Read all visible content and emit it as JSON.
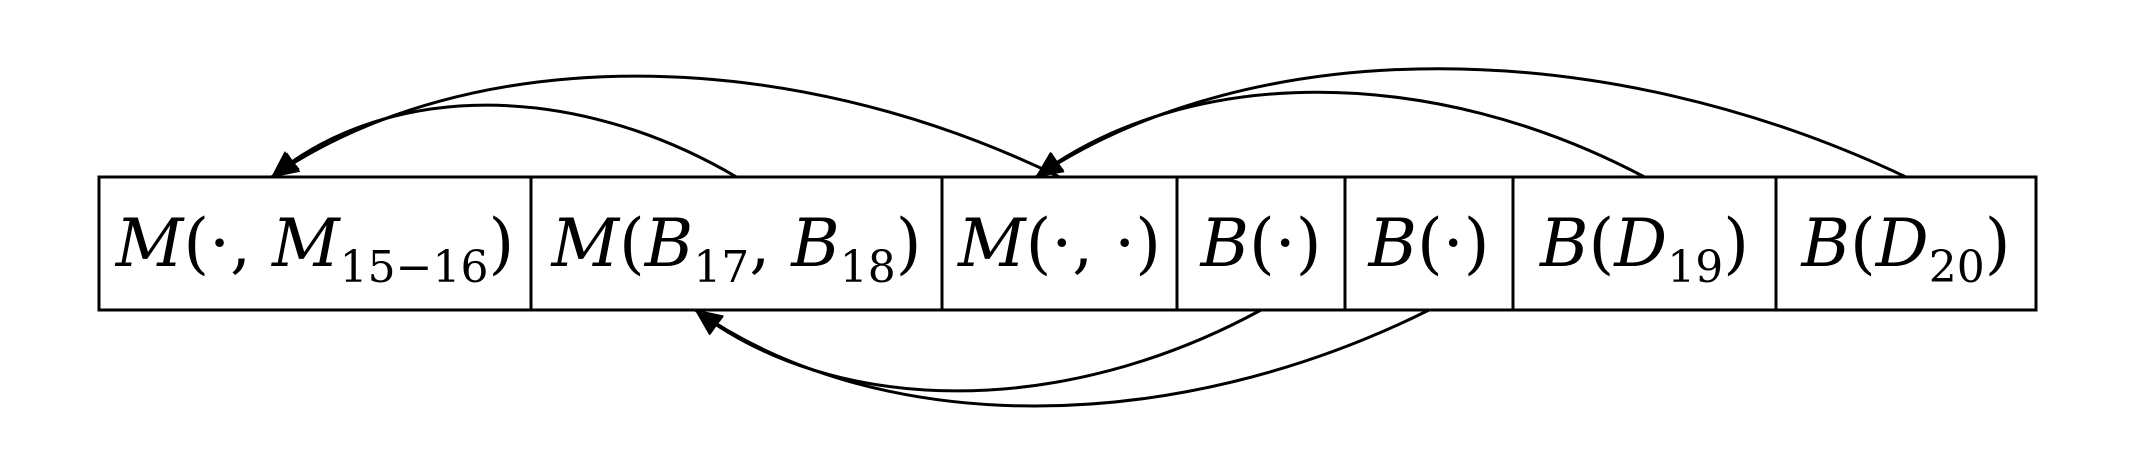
{
  "cells": [
    {
      "id": "c1",
      "parts": [
        {
          "t": "M",
          "i": true
        },
        {
          "t": "(·, "
        },
        {
          "t": "M",
          "i": true
        },
        {
          "t": "15−16",
          "sub": true
        },
        {
          "t": ")"
        }
      ]
    },
    {
      "id": "c2",
      "parts": [
        {
          "t": "M",
          "i": true
        },
        {
          "t": "("
        },
        {
          "t": "B",
          "i": true
        },
        {
          "t": "17",
          "sub": true
        },
        {
          "t": ", "
        },
        {
          "t": "B",
          "i": true
        },
        {
          "t": "18",
          "sub": true
        },
        {
          "t": ")"
        }
      ]
    },
    {
      "id": "c3",
      "parts": [
        {
          "t": "M",
          "i": true
        },
        {
          "t": "(·, ·)"
        }
      ]
    },
    {
      "id": "c4",
      "parts": [
        {
          "t": "B",
          "i": true
        },
        {
          "t": "(·)"
        }
      ]
    },
    {
      "id": "c5",
      "parts": [
        {
          "t": "B",
          "i": true
        },
        {
          "t": "(·)"
        }
      ]
    },
    {
      "id": "c6",
      "parts": [
        {
          "t": "B",
          "i": true
        },
        {
          "t": "("
        },
        {
          "t": "D",
          "i": true
        },
        {
          "t": "19",
          "sub": true
        },
        {
          "t": ")"
        }
      ]
    },
    {
      "id": "c7",
      "parts": [
        {
          "t": "B",
          "i": true
        },
        {
          "t": "("
        },
        {
          "t": "D",
          "i": true
        },
        {
          "t": "20",
          "sub": true
        },
        {
          "t": ")"
        }
      ]
    }
  ],
  "edges": [
    {
      "from": "c2",
      "to": "c1",
      "side": "top"
    },
    {
      "from": "c3",
      "to": "c1",
      "side": "top"
    },
    {
      "from": "c6",
      "to": "c3",
      "side": "top"
    },
    {
      "from": "c7",
      "to": "c3",
      "side": "top"
    },
    {
      "from": "c4",
      "to": "c2",
      "side": "bottom"
    },
    {
      "from": "c5",
      "to": "c2",
      "side": "bottom"
    }
  ]
}
